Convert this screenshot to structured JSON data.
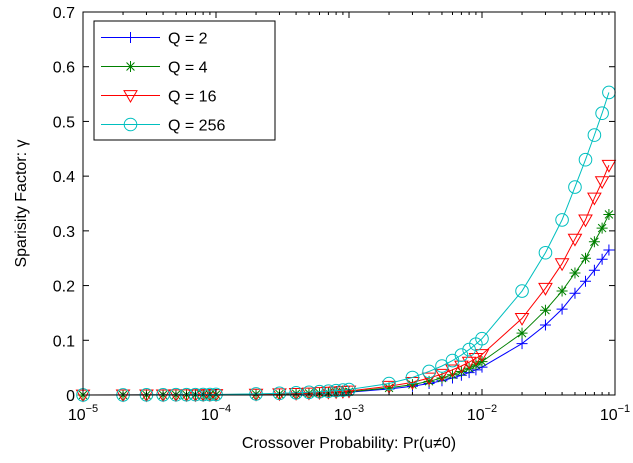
{
  "chart_data": {
    "type": "line",
    "xscale": "log",
    "xlabel": "Crossover Probability: Pr(u≠0)",
    "ylabel": "Sparisity Factor: γ",
    "xlim": [
      1e-05,
      0.1
    ],
    "ylim": [
      0,
      0.7
    ],
    "xticks": [
      {
        "value": 1e-05,
        "base": "10",
        "exp": "−5"
      },
      {
        "value": 0.0001,
        "base": "10",
        "exp": "−4"
      },
      {
        "value": 0.001,
        "base": "10",
        "exp": "−3"
      },
      {
        "value": 0.01,
        "base": "10",
        "exp": "−2"
      },
      {
        "value": 0.1,
        "base": "10",
        "exp": "−1"
      }
    ],
    "yticks": [
      "0",
      "0.1",
      "0.2",
      "0.3",
      "0.4",
      "0.5",
      "0.6",
      "0.7"
    ],
    "grid": false,
    "legend_position": "top-left",
    "x": [
      1e-05,
      2e-05,
      3e-05,
      4e-05,
      5e-05,
      6e-05,
      7e-05,
      8e-05,
      9e-05,
      0.0001,
      0.0002,
      0.0003,
      0.0004,
      0.0005,
      0.0006,
      0.0007,
      0.0008,
      0.0009,
      0.001,
      0.002,
      0.003,
      0.004,
      0.005,
      0.006,
      0.007,
      0.008,
      0.009,
      0.01,
      0.02,
      0.03,
      0.04,
      0.05,
      0.06,
      0.07,
      0.08,
      0.09
    ],
    "series": [
      {
        "name": "Q = 2",
        "color": "#0000ff",
        "marker": "plus",
        "values": [
          0.0001,
          0.0001,
          0.0002,
          0.0002,
          0.0003,
          0.0003,
          0.0004,
          0.0004,
          0.0005,
          0.0005,
          0.001,
          0.0015,
          0.002,
          0.0025,
          0.003,
          0.0035,
          0.004,
          0.0045,
          0.005,
          0.011,
          0.016,
          0.021,
          0.026,
          0.031,
          0.036,
          0.041,
          0.046,
          0.051,
          0.094,
          0.128,
          0.157,
          0.186,
          0.208,
          0.228,
          0.248,
          0.265
        ]
      },
      {
        "name": "Q = 4",
        "color": "#008000",
        "marker": "star",
        "values": [
          0.0001,
          0.0001,
          0.0002,
          0.0003,
          0.0003,
          0.0004,
          0.0004,
          0.0005,
          0.0006,
          0.0006,
          0.0012,
          0.0018,
          0.0024,
          0.003,
          0.0036,
          0.0042,
          0.0048,
          0.0054,
          0.006,
          0.013,
          0.019,
          0.025,
          0.031,
          0.037,
          0.043,
          0.049,
          0.055,
          0.061,
          0.113,
          0.155,
          0.19,
          0.223,
          0.25,
          0.28,
          0.305,
          0.33
        ]
      },
      {
        "name": "Q = 16",
        "color": "#ff0000",
        "marker": "triangle-down",
        "values": [
          0.0001,
          0.0002,
          0.0002,
          0.0003,
          0.0004,
          0.0005,
          0.0005,
          0.0006,
          0.0007,
          0.0008,
          0.0015,
          0.0023,
          0.003,
          0.0037,
          0.0045,
          0.0052,
          0.0059,
          0.0066,
          0.0074,
          0.016,
          0.023,
          0.031,
          0.038,
          0.046,
          0.053,
          0.06,
          0.067,
          0.074,
          0.14,
          0.195,
          0.24,
          0.285,
          0.32,
          0.36,
          0.39,
          0.42
        ]
      },
      {
        "name": "Q = 256",
        "color": "#00bfbf",
        "marker": "circle",
        "values": [
          0.0001,
          0.0002,
          0.0003,
          0.0004,
          0.0005,
          0.0006,
          0.0007,
          0.0008,
          0.0009,
          0.001,
          0.002,
          0.003,
          0.004,
          0.005,
          0.006,
          0.007,
          0.008,
          0.009,
          0.01,
          0.021,
          0.032,
          0.043,
          0.053,
          0.063,
          0.073,
          0.083,
          0.093,
          0.103,
          0.19,
          0.26,
          0.32,
          0.38,
          0.43,
          0.475,
          0.515,
          0.553
        ]
      }
    ]
  }
}
